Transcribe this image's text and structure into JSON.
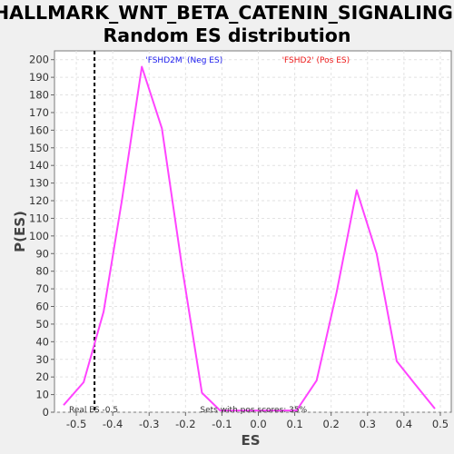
{
  "chart_data": {
    "type": "line",
    "title_lines": [
      "HALLMARK_WNT_BETA_CATENIN_SIGNALING:",
      "Random ES distribution"
    ],
    "xlabel": "ES",
    "ylabel": "P(ES)",
    "xlim": [
      -0.56,
      0.53
    ],
    "ylim": [
      0,
      205
    ],
    "xticks": [
      -0.5,
      -0.4,
      -0.3,
      -0.2,
      -0.1,
      0.0,
      0.1,
      0.2,
      0.3,
      0.4,
      0.5
    ],
    "xtick_labels": [
      "-0.5",
      "-0.4",
      "-0.3",
      "-0.2",
      "-0.1",
      "0.0",
      "0.1",
      "0.2",
      "0.3",
      "0.4",
      "0.5"
    ],
    "yticks": [
      0,
      10,
      20,
      30,
      40,
      50,
      60,
      70,
      80,
      90,
      100,
      110,
      120,
      130,
      140,
      150,
      160,
      170,
      180,
      190,
      200
    ],
    "grid": true,
    "series": [
      {
        "color": "#ff44ff",
        "x": [
          -0.535,
          -0.48,
          -0.425,
          -0.375,
          -0.32,
          -0.265,
          -0.21,
          -0.155,
          -0.105,
          -0.05,
          0.0,
          0.05,
          0.105,
          0.16,
          0.215,
          0.27,
          0.325,
          0.38,
          0.43,
          0.485
        ],
        "y": [
          4,
          17,
          57,
          120,
          196,
          161,
          83,
          11,
          1,
          1,
          1,
          1,
          1,
          18,
          68,
          126,
          90,
          29,
          16,
          2
        ]
      }
    ],
    "real_es_marker": {
      "x": -0.45,
      "color": "#000000",
      "style": "dashed"
    },
    "legend": [
      {
        "text": "'FSHD2M' (Neg ES)",
        "color": "#1a1aee",
        "anchor_x": -0.31
      },
      {
        "text": "'FSHD2' (Pos ES)",
        "color": "#ee1a1a",
        "anchor_x": 0.065
      }
    ],
    "annotations": {
      "real_es": "Real ES -0.5",
      "pos_scores": "Sets with pos scores: 35%"
    }
  }
}
